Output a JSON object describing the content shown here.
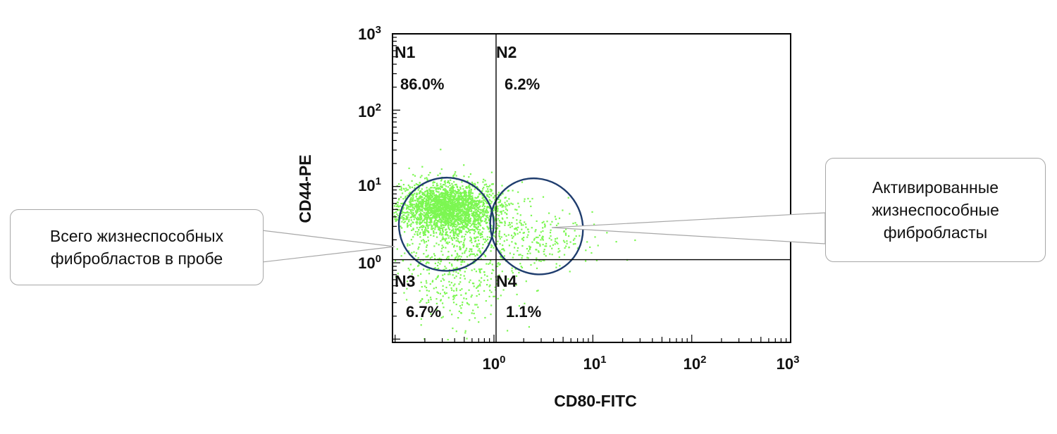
{
  "chart_data": {
    "type": "scatter",
    "xlabel": "CD80-FITC",
    "ylabel": "CD44-PE",
    "x_scale": "log",
    "y_scale": "log",
    "x_ticks": [
      "10^0",
      "10^1",
      "10^2",
      "10^3"
    ],
    "y_ticks": [
      "10^0",
      "10^1",
      "10^2",
      "10^3"
    ],
    "xlim": [
      0.1,
      1000
    ],
    "ylim": [
      0.1,
      1000
    ],
    "point_color": "#7cf752",
    "gate_color": "#1f3d6e",
    "quadrant_split": {
      "x": 1.05,
      "y": 1.1
    },
    "quadrants": [
      {
        "label": "N1",
        "percent": "86.0%"
      },
      {
        "label": "N2",
        "percent": "6.2%"
      },
      {
        "label": "N3",
        "percent": "6.7%"
      },
      {
        "label": "N4",
        "percent": "1.1%"
      }
    ],
    "gates": [
      {
        "name": "Всего жизнеспособных фибробластов в пробе",
        "cx": 0.33,
        "cy": 3.2,
        "rx_decades": 0.48,
        "ry_decades": 0.61,
        "rotation_deg": -12
      },
      {
        "name": "Активированные жизнеспособные фибробласты",
        "cx": 2.7,
        "cy": 3.0,
        "rx_decades": 0.46,
        "ry_decades": 0.64,
        "rotation_deg": -30
      }
    ],
    "populations": [
      {
        "name": "main",
        "x_median": 0.33,
        "y_median": 5.5,
        "x_sd_decades": 0.24,
        "y_sd_decades": 0.16,
        "count": 2300
      },
      {
        "name": "spread",
        "x_median": 0.45,
        "y_median": 2.6,
        "x_sd_decades": 0.32,
        "y_sd_decades": 0.32,
        "count": 550
      },
      {
        "name": "low",
        "x_median": 0.45,
        "y_median": 0.55,
        "x_sd_decades": 0.3,
        "y_sd_decades": 0.3,
        "count": 260
      },
      {
        "name": "activated",
        "x_median": 2.6,
        "y_median": 2.3,
        "x_sd_decades": 0.3,
        "y_sd_decades": 0.22,
        "count": 220
      }
    ]
  },
  "annotations": {
    "left": {
      "text": "Всего жизнеспособных\nфибробластов в пробе"
    },
    "right": {
      "text": "Активированные\nжизнеспособные\nфибробласты"
    }
  }
}
